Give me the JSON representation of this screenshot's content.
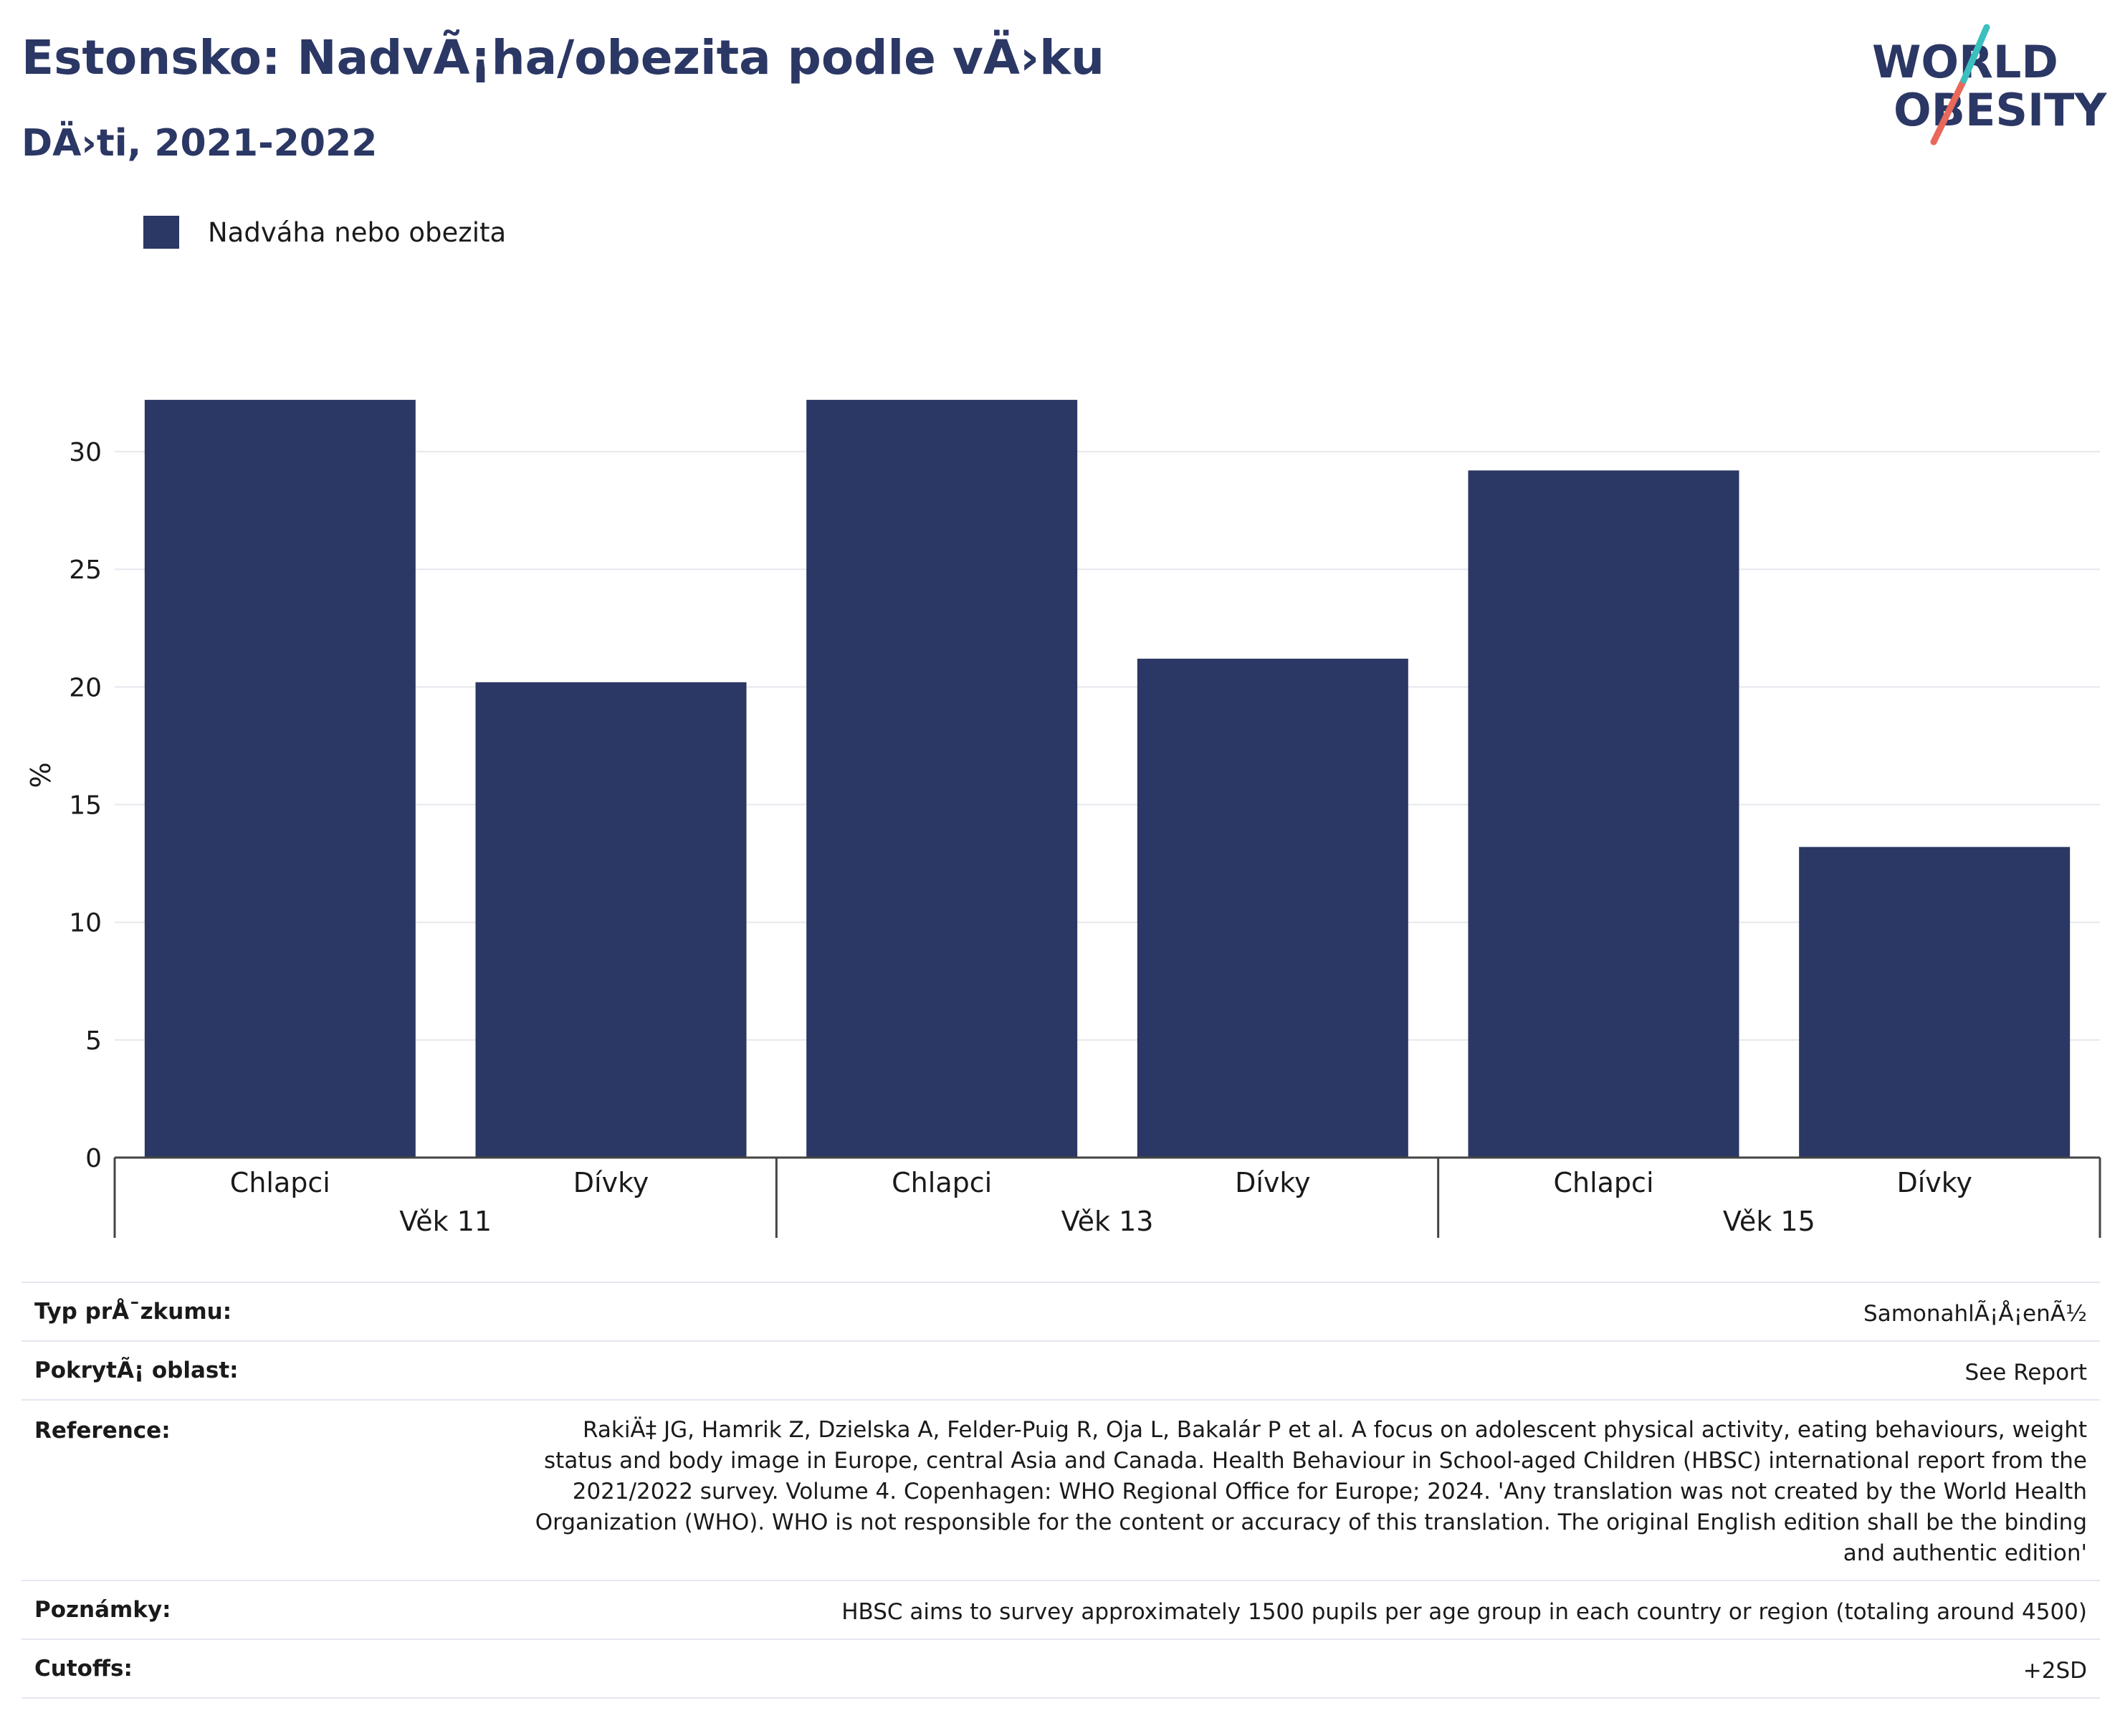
{
  "header": {
    "title": "Estonsko: NadvÃ¡ha/obezita podle vÄ›ku",
    "subtitle": "DÄ›ti, 2021-2022"
  },
  "logo": {
    "line1": "WORLD",
    "line2": "OBESITY",
    "text_color": "#2b3764",
    "accent_teal": "#3bbfbf",
    "accent_coral": "#e8685a"
  },
  "legend": {
    "label": "Nadváha nebo obezita",
    "color": "#2b3764"
  },
  "chart_data": {
    "type": "bar",
    "ylabel": "%",
    "ylim": [
      0,
      32.5
    ],
    "yticks": [
      0,
      5,
      10,
      15,
      20,
      25,
      30
    ],
    "grid": true,
    "bar_color": "#2b3764",
    "groups": [
      {
        "label": "Věk 11",
        "categories": [
          "Chlapci",
          "Dívky"
        ],
        "values": [
          32.2,
          20.2
        ]
      },
      {
        "label": "Věk 13",
        "categories": [
          "Chlapci",
          "Dívky"
        ],
        "values": [
          32.2,
          21.2
        ]
      },
      {
        "label": "Věk 15",
        "categories": [
          "Chlapci",
          "Dívky"
        ],
        "values": [
          29.2,
          13.2
        ]
      }
    ],
    "series": [
      {
        "name": "Nadváha nebo obezita"
      }
    ]
  },
  "info": [
    {
      "label": "Typ prÅ¯zkumu:",
      "value": "SamonahlÃ¡Å¡enÃ½"
    },
    {
      "label": "PokrytÃ¡ oblast:",
      "value": "See Report"
    },
    {
      "label": "Reference:",
      "value": "RakiÄ‡ JG, Hamrik Z, Dzielska A, Felder-Puig R, Oja L, Bakalár P et al. A focus on adolescent physical activity, eating behaviours, weight status and body image in Europe, central Asia and Canada. Health Behaviour in School-aged Children (HBSC) international report from the 2021/2022 survey. Volume 4. Copenhagen: WHO Regional Office for Europe; 2024. 'Any translation was not created by the World Health Organization (WHO). WHO is not responsible for the content or accuracy of this translation. The original English edition shall be the binding and authentic edition'"
    },
    {
      "label": "Poznámky:",
      "value": "HBSC aims to survey approximately 1500 pupils per age group in each country or region (totaling around 4500)"
    },
    {
      "label": "Cutoffs:",
      "value": "+2SD"
    }
  ]
}
